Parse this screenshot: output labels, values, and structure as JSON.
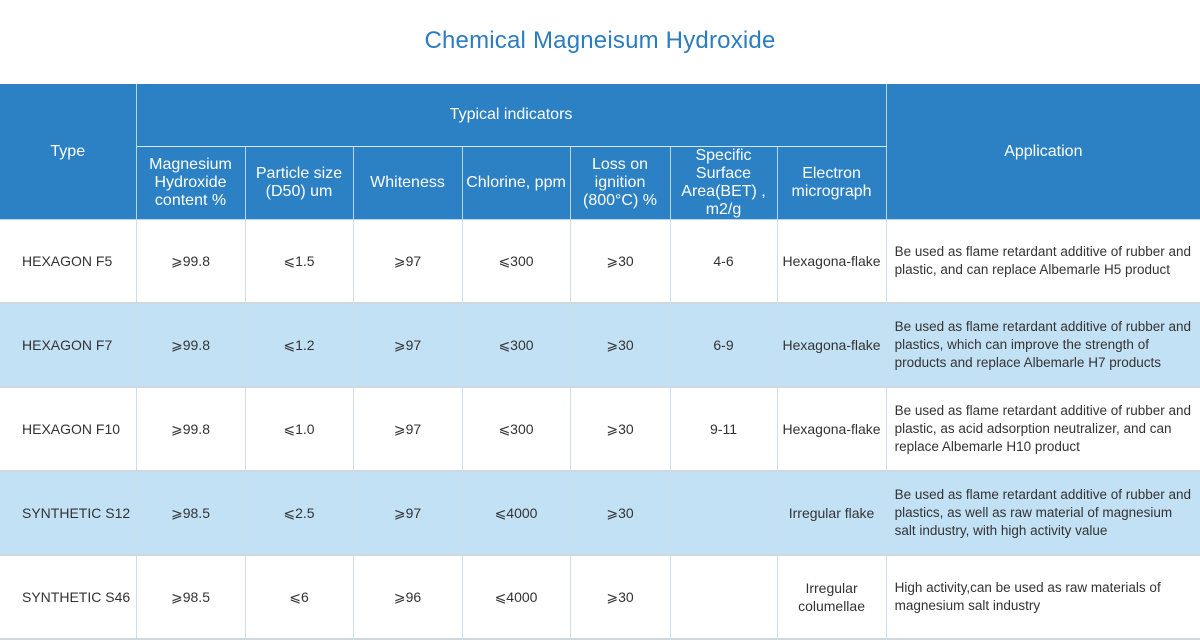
{
  "title": "Chemical Magneisum Hydroxide",
  "colors": {
    "title": "#2b7cc1",
    "header_bg": "#2b81c4",
    "alt_row_bg": "#c3e1f5"
  },
  "header": {
    "type": "Type",
    "group": "Typical indicators",
    "application": "Application",
    "columns": [
      "Magnesium Hydroxide content %",
      "Particle size (D50) um",
      "Whiteness",
      "Chlorine, ppm",
      "Loss on ignition (800°C)  %",
      "Specific Surface Area(BET) , m2/g",
      "Electron micrograph"
    ]
  },
  "rows": [
    {
      "type": "HEXAGON F5",
      "mg": "⩾99.8",
      "particle": "⩽1.5",
      "whiteness": "⩾97",
      "chlorine": "⩽300",
      "loss": "⩾30",
      "bet": "4-6",
      "micrograph": "Hexagona-flake",
      "application": "Be used as flame retardant additive of rubber and plastic, and can replace Albemarle H5 product"
    },
    {
      "type": "HEXAGON F7",
      "mg": "⩾99.8",
      "particle": "⩽1.2",
      "whiteness": "⩾97",
      "chlorine": "⩽300",
      "loss": "⩾30",
      "bet": "6-9",
      "micrograph": "Hexagona-flake",
      "application": "Be used as flame retardant additive of rubber and plastics, which can improve the strength of products and replace Albemarle H7 products"
    },
    {
      "type": "HEXAGON F10",
      "mg": "⩾99.8",
      "particle": "⩽1.0",
      "whiteness": "⩾97",
      "chlorine": "⩽300",
      "loss": "⩾30",
      "bet": "9-11",
      "micrograph": "Hexagona-flake",
      "application": "Be used as flame retardant additive of rubber and plastic, as acid adsorption neutralizer, and can replace Albemarle H10 product"
    },
    {
      "type": "SYNTHETIC S12",
      "mg": "⩾98.5",
      "particle": "⩽2.5",
      "whiteness": "⩾97",
      "chlorine": "⩽4000",
      "loss": "⩾30",
      "bet": "",
      "micrograph": "Irregular flake",
      "application": "Be used as flame retardant additive of rubber and plastics, as well as raw material of magnesium salt industry, with high activity value"
    },
    {
      "type": "SYNTHETIC S46",
      "mg": "⩾98.5",
      "particle": "⩽6",
      "whiteness": "⩾96",
      "chlorine": "⩽4000",
      "loss": "⩾30",
      "bet": "",
      "micrograph": "Irregular columellae",
      "application": "High activity,can be used as raw materials of magnesium salt industry"
    }
  ]
}
